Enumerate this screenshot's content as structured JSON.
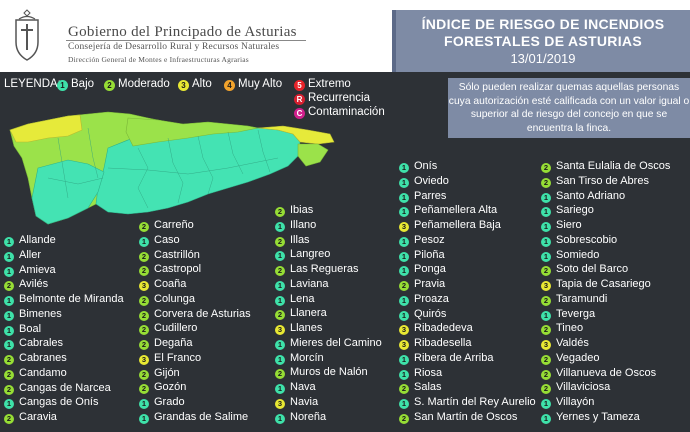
{
  "header": {
    "gov_title": "Gobierno del Principado de Asturias",
    "gov_sub1": "Consejería de Desarrollo Rural y Recursos Naturales",
    "gov_sub2": "Dirección General de Montes e Infraestructuras Agrarias",
    "title_line1": "ÍNDICE DE RIESGO DE INCENDIOS",
    "title_line2": "FORESTALES DE ASTURIAS",
    "date": "13/01/2019"
  },
  "legend": {
    "label": "LEYENDA:",
    "items": [
      {
        "code": "1",
        "label": "Bajo",
        "color": "#3ee1a9"
      },
      {
        "code": "2",
        "label": "Moderado",
        "color": "#96dd35"
      },
      {
        "code": "3",
        "label": "Alto",
        "color": "#e8e833"
      },
      {
        "code": "4",
        "label": "Muy Alto",
        "color": "#f2a32c"
      },
      {
        "code": "5",
        "label": "Extremo",
        "color": "#e8232a"
      },
      {
        "code": "R",
        "label": "Recurrencia",
        "color": "#d71f2f"
      },
      {
        "code": "C",
        "label": "Contaminación",
        "color": "#d11f8c"
      }
    ]
  },
  "note": "Sólo pueden realizar quemas aquellas personas cuya autorización esté calificada con un valor igual o superior al de riesgo del concejo en que se encuentra la finca.",
  "columns": [
    [
      {
        "r": "1",
        "n": "Allande"
      },
      {
        "r": "1",
        "n": "Aller"
      },
      {
        "r": "1",
        "n": "Amieva"
      },
      {
        "r": "2",
        "n": "Avilés"
      },
      {
        "r": "1",
        "n": "Belmonte de Miranda"
      },
      {
        "r": "1",
        "n": "Bimenes"
      },
      {
        "r": "1",
        "n": "Boal"
      },
      {
        "r": "1",
        "n": "Cabrales"
      },
      {
        "r": "2",
        "n": "Cabranes"
      },
      {
        "r": "2",
        "n": "Candamo"
      },
      {
        "r": "2",
        "n": "Cangas de Narcea"
      },
      {
        "r": "1",
        "n": "Cangas de Onís"
      },
      {
        "r": "2",
        "n": "Caravia"
      }
    ],
    [
      {
        "r": "2",
        "n": "Carreño"
      },
      {
        "r": "1",
        "n": "Caso"
      },
      {
        "r": "2",
        "n": "Castrillón"
      },
      {
        "r": "2",
        "n": "Castropol"
      },
      {
        "r": "3",
        "n": "Coaña"
      },
      {
        "r": "2",
        "n": "Colunga"
      },
      {
        "r": "2",
        "n": "Corvera de Asturias"
      },
      {
        "r": "2",
        "n": "Cudillero"
      },
      {
        "r": "2",
        "n": "Degaña"
      },
      {
        "r": "3",
        "n": "El Franco"
      },
      {
        "r": "2",
        "n": "Gijón"
      },
      {
        "r": "2",
        "n": "Gozón"
      },
      {
        "r": "1",
        "n": "Grado"
      },
      {
        "r": "1",
        "n": "Grandas de Salime"
      }
    ],
    [
      {
        "r": "2",
        "n": "Ibias"
      },
      {
        "r": "1",
        "n": "Illano"
      },
      {
        "r": "2",
        "n": "Illas"
      },
      {
        "r": "1",
        "n": "Langreo"
      },
      {
        "r": "2",
        "n": "Las Regueras"
      },
      {
        "r": "1",
        "n": "Laviana"
      },
      {
        "r": "1",
        "n": "Lena"
      },
      {
        "r": "2",
        "n": "Llanera"
      },
      {
        "r": "3",
        "n": "Llanes"
      },
      {
        "r": "1",
        "n": "Mieres del Camino"
      },
      {
        "r": "1",
        "n": "Morcín"
      },
      {
        "r": "2",
        "n": "Muros de Nalón"
      },
      {
        "r": "1",
        "n": "Nava"
      },
      {
        "r": "3",
        "n": "Navia"
      },
      {
        "r": "1",
        "n": "Noreña"
      }
    ],
    [
      {
        "r": "1",
        "n": "Onís"
      },
      {
        "r": "1",
        "n": "Oviedo"
      },
      {
        "r": "1",
        "n": "Parres"
      },
      {
        "r": "1",
        "n": "Peñamellera Alta"
      },
      {
        "r": "3",
        "n": "Peñamellera Baja"
      },
      {
        "r": "1",
        "n": "Pesoz"
      },
      {
        "r": "1",
        "n": "Piloña"
      },
      {
        "r": "1",
        "n": "Ponga"
      },
      {
        "r": "2",
        "n": "Pravia"
      },
      {
        "r": "1",
        "n": "Proaza"
      },
      {
        "r": "1",
        "n": "Quirós"
      },
      {
        "r": "3",
        "n": "Ribadedeva"
      },
      {
        "r": "3",
        "n": "Ribadesella"
      },
      {
        "r": "1",
        "n": "Ribera de Arriba"
      },
      {
        "r": "1",
        "n": "Riosa"
      },
      {
        "r": "2",
        "n": "Salas"
      },
      {
        "r": "1",
        "n": "S. Martín del Rey Aurelio"
      },
      {
        "r": "2",
        "n": "San Martín de Oscos"
      }
    ],
    [
      {
        "r": "2",
        "n": "Santa Eulalia de Oscos"
      },
      {
        "r": "2",
        "n": "San Tirso de Abres"
      },
      {
        "r": "1",
        "n": "Santo Adriano"
      },
      {
        "r": "1",
        "n": "Sariego"
      },
      {
        "r": "1",
        "n": "Siero"
      },
      {
        "r": "1",
        "n": "Sobrescobio"
      },
      {
        "r": "1",
        "n": "Somiedo"
      },
      {
        "r": "2",
        "n": "Soto del Barco"
      },
      {
        "r": "3",
        "n": "Tapia de Casariego"
      },
      {
        "r": "2",
        "n": "Taramundi"
      },
      {
        "r": "1",
        "n": "Teverga"
      },
      {
        "r": "2",
        "n": "Tineo"
      },
      {
        "r": "3",
        "n": "Valdés"
      },
      {
        "r": "2",
        "n": "Vegadeo"
      },
      {
        "r": "2",
        "n": "Villanueva de Oscos"
      },
      {
        "r": "2",
        "n": "Villaviciosa"
      },
      {
        "r": "1",
        "n": "Villayón"
      },
      {
        "r": "1",
        "n": "Yernes y Tameza"
      }
    ]
  ]
}
